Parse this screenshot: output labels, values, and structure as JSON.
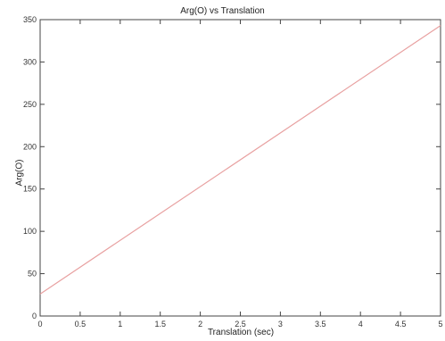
{
  "chart_data": {
    "type": "line",
    "title": "Arg(O) vs Translation",
    "xlabel": "Translation (sec)",
    "ylabel": "Arg(O)",
    "xlim": [
      0,
      5
    ],
    "ylim": [
      0,
      350
    ],
    "xticks": [
      0,
      0.5,
      1,
      1.5,
      2,
      2.5,
      3,
      3.5,
      4,
      4.5,
      5
    ],
    "xtick_labels": [
      "0",
      "0.5",
      "1",
      "1.5",
      "2",
      "2.5",
      "3",
      "3.5",
      "4",
      "4.5",
      "5"
    ],
    "yticks": [
      0,
      50,
      100,
      150,
      200,
      250,
      300,
      350
    ],
    "ytick_labels": [
      "0",
      "50",
      "100",
      "150",
      "200",
      "250",
      "300",
      "350"
    ],
    "grid": false,
    "series": [
      {
        "color": "#e8a0a0",
        "x": [
          0,
          5
        ],
        "y": [
          26,
          343
        ]
      }
    ]
  }
}
